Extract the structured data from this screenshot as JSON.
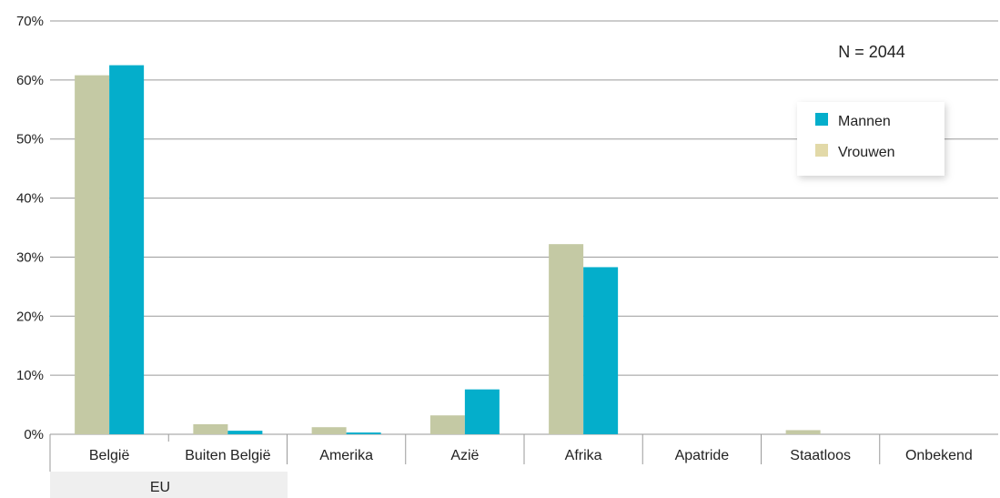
{
  "chart_data": {
    "type": "bar",
    "categories": [
      "België",
      "Buiten België",
      "Amerika",
      "Azië",
      "Afrika",
      "Apatride",
      "Staatloos",
      "Onbekend"
    ],
    "group_label": "EU",
    "group_members": [
      "België",
      "Buiten België"
    ],
    "series": [
      {
        "name": "Vrouwen",
        "values": [
          60.8,
          1.7,
          1.2,
          3.2,
          32.2,
          0,
          0.7,
          0
        ]
      },
      {
        "name": "Mannen",
        "values": [
          62.5,
          0.6,
          0.3,
          7.6,
          28.3,
          0,
          0,
          0
        ]
      }
    ],
    "yticks": [
      "0%",
      "10%",
      "20%",
      "30%",
      "40%",
      "50%",
      "60%",
      "70%"
    ],
    "ylim": [
      0,
      70
    ],
    "annotation": "N = 2044",
    "legend": {
      "placement": "top-right",
      "entries": [
        "Mannen",
        "Vrouwen"
      ]
    },
    "grid": true,
    "colors": {
      "Vrouwen": "#c4c9a4",
      "Mannen": "#04aecb",
      "legend_Vrouwen": "#e2d9a8",
      "grid": "#9a9a9a",
      "group_band": "#efefef"
    }
  }
}
